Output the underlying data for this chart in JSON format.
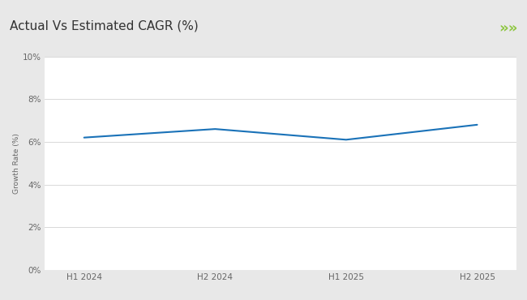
{
  "title": "Actual Vs Estimated CAGR (%)",
  "x_labels": [
    "H1 2024",
    "H2 2024",
    "H1 2025",
    "H2 2025"
  ],
  "x_values": [
    0,
    1,
    2,
    3
  ],
  "y_values": [
    6.2,
    6.6,
    6.1,
    6.8
  ],
  "line_color": "#1a72b8",
  "line_width": 1.5,
  "ylabel": "Growth Rate (%)",
  "ylim": [
    0,
    10
  ],
  "yticks": [
    0,
    2,
    4,
    6,
    8,
    10
  ],
  "ytick_labels": [
    "0%",
    "2%",
    "4%",
    "6%",
    "8%",
    "10%"
  ],
  "outer_bg_color": "#e8e8e8",
  "title_bg_color": "#ffffff",
  "plot_bg_color": "#ffffff",
  "title_fontsize": 11,
  "axis_fontsize": 7.5,
  "ylabel_fontsize": 6.5,
  "green_line_color": "#8dc63f",
  "chevron_color": "#8dc63f",
  "grid_color": "#d8d8d8",
  "title_color": "#333333",
  "tick_color": "#666666"
}
